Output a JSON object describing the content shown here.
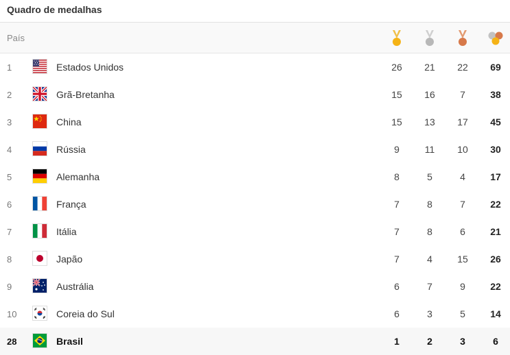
{
  "title": "Quadro de medalhas",
  "header": {
    "country_label": "País"
  },
  "icons": {
    "gold": "gold-medal-icon",
    "silver": "silver-medal-icon",
    "bronze": "bronze-medal-icon",
    "total": "total-medals-icon"
  },
  "colors": {
    "gold": "#f5b316",
    "silver": "#b8b8b8",
    "bronze": "#d7794a"
  },
  "rows": [
    {
      "rank": "1",
      "country": "Estados Unidos",
      "flag": "usa-flag",
      "gold": "26",
      "silver": "21",
      "bronze": "22",
      "total": "69"
    },
    {
      "rank": "2",
      "country": "Grã-Bretanha",
      "flag": "uk-flag",
      "gold": "15",
      "silver": "16",
      "bronze": "7",
      "total": "38"
    },
    {
      "rank": "3",
      "country": "China",
      "flag": "china-flag",
      "gold": "15",
      "silver": "13",
      "bronze": "17",
      "total": "45"
    },
    {
      "rank": "4",
      "country": "Rússia",
      "flag": "russia-flag",
      "gold": "9",
      "silver": "11",
      "bronze": "10",
      "total": "30"
    },
    {
      "rank": "5",
      "country": "Alemanha",
      "flag": "germany-flag",
      "gold": "8",
      "silver": "5",
      "bronze": "4",
      "total": "17"
    },
    {
      "rank": "6",
      "country": "França",
      "flag": "france-flag",
      "gold": "7",
      "silver": "8",
      "bronze": "7",
      "total": "22"
    },
    {
      "rank": "7",
      "country": "Itália",
      "flag": "italy-flag",
      "gold": "7",
      "silver": "8",
      "bronze": "6",
      "total": "21"
    },
    {
      "rank": "8",
      "country": "Japão",
      "flag": "japan-flag",
      "gold": "7",
      "silver": "4",
      "bronze": "15",
      "total": "26"
    },
    {
      "rank": "9",
      "country": "Austrália",
      "flag": "australia-flag",
      "gold": "6",
      "silver": "7",
      "bronze": "9",
      "total": "22"
    },
    {
      "rank": "10",
      "country": "Coreia do Sul",
      "flag": "south-korea-flag",
      "gold": "6",
      "silver": "3",
      "bronze": "5",
      "total": "14"
    }
  ],
  "highlight": {
    "rank": "28",
    "country": "Brasil",
    "flag": "brazil-flag",
    "gold": "1",
    "silver": "2",
    "bronze": "3",
    "total": "6"
  }
}
